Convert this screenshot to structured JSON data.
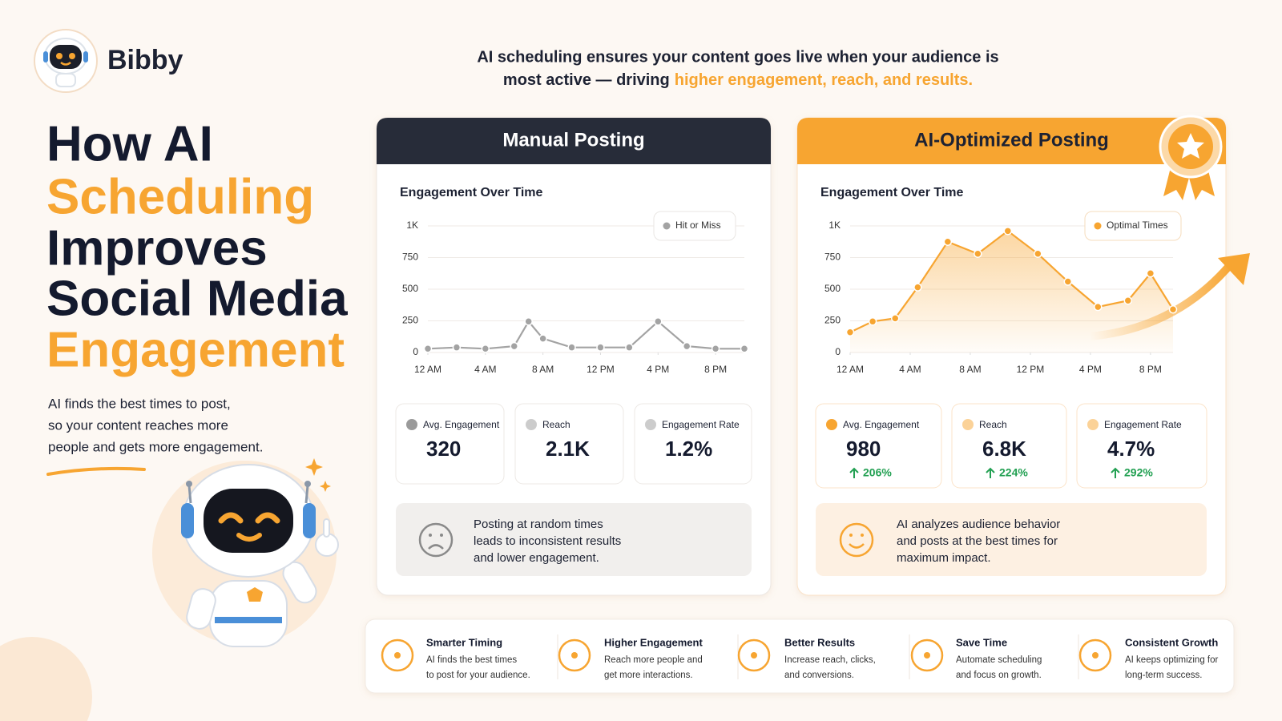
{
  "brand": "Bibby",
  "tagline": {
    "line1": "AI scheduling ensures your content goes live when your audience is",
    "line2": "most active — driving",
    "highlight": "higher engagement, reach, and results."
  },
  "headline": [
    "How AI",
    "Scheduling",
    "Improves",
    "Social Media",
    "Engagement"
  ],
  "intro": [
    "AI finds the best times to post,",
    "so your content reaches more",
    "people and gets more engagement."
  ],
  "panels": [
    {
      "title": "Manual Posting",
      "chart": {
        "type": "line",
        "title": "Engagement Over Time",
        "legend": "Hit or Miss",
        "color": "#a3a3a3",
        "grid": true,
        "x": [
          0,
          2,
          4,
          6,
          7,
          8,
          10,
          12,
          14,
          16,
          18,
          20,
          22
        ],
        "values": [
          30,
          40,
          30,
          50,
          245,
          110,
          40,
          40,
          40,
          245,
          50,
          30,
          30
        ],
        "xlim": [
          0,
          22
        ],
        "ylim": [
          0,
          1000
        ],
        "xticks": [
          {
            "value": 0,
            "label": "12 AM"
          },
          {
            "value": 4,
            "label": "4 AM"
          },
          {
            "value": 8,
            "label": "8 AM"
          },
          {
            "value": 12,
            "label": "12 PM"
          },
          {
            "value": 16,
            "label": "4 PM"
          },
          {
            "value": 20,
            "label": "8 PM"
          }
        ],
        "yticks": [
          0,
          250,
          500,
          750,
          {
            "value": 1000,
            "label": "1K"
          }
        ]
      },
      "stats": [
        {
          "label": "Avg. Engagement",
          "value": "320"
        },
        {
          "label": "Reach",
          "value": "2.1K"
        },
        {
          "label": "Engagement Rate",
          "value": "1.2%"
        }
      ],
      "message": [
        "Posting at random times",
        "leads to inconsistent results",
        "and lower engagement."
      ]
    },
    {
      "title": "AI-Optimized Posting",
      "chart": {
        "type": "line",
        "title": "Engagement Over Time",
        "legend": "Optimal Times",
        "color": "#f7a531",
        "grid": true,
        "x": [
          0,
          1.5,
          3,
          4.5,
          6.5,
          8.5,
          10.5,
          12.5,
          14.5,
          16.5,
          18.5,
          20,
          21.5
        ],
        "values": [
          160,
          245,
          270,
          515,
          875,
          780,
          960,
          780,
          560,
          360,
          410,
          625,
          340
        ],
        "xlim": [
          0,
          21.5
        ],
        "ylim": [
          0,
          1000
        ],
        "xticks": [
          {
            "value": 0,
            "label": "12 AM"
          },
          {
            "value": 4,
            "label": "4 AM"
          },
          {
            "value": 8,
            "label": "8 AM"
          },
          {
            "value": 12,
            "label": "12 PM"
          },
          {
            "value": 16,
            "label": "4 PM"
          },
          {
            "value": 20,
            "label": "8 PM"
          }
        ],
        "yticks": [
          0,
          250,
          500,
          750,
          {
            "value": 1000,
            "label": "1K"
          }
        ]
      },
      "stats": [
        {
          "label": "Avg. Engagement",
          "value": "980",
          "change": "206%"
        },
        {
          "label": "Reach",
          "value": "6.8K",
          "change": "224%"
        },
        {
          "label": "Engagement Rate",
          "value": "4.7%",
          "change": "292%"
        }
      ],
      "message": [
        "AI analyzes audience behavior",
        "and posts at the best times for",
        "maximum impact."
      ]
    }
  ],
  "features": [
    {
      "title": "Smarter Timing",
      "desc": [
        "AI finds the best times",
        "to post for your audience."
      ]
    },
    {
      "title": "Higher Engagement",
      "desc": [
        "Reach more people and",
        "get more interactions."
      ]
    },
    {
      "title": "Better Results",
      "desc": [
        "Increase reach, clicks,",
        "and conversions."
      ]
    },
    {
      "title": "Save Time",
      "desc": [
        "Automate scheduling",
        "and focus on growth."
      ]
    },
    {
      "title": "Consistent Growth",
      "desc": [
        "AI keeps optimizing for",
        "long-term success."
      ]
    }
  ]
}
